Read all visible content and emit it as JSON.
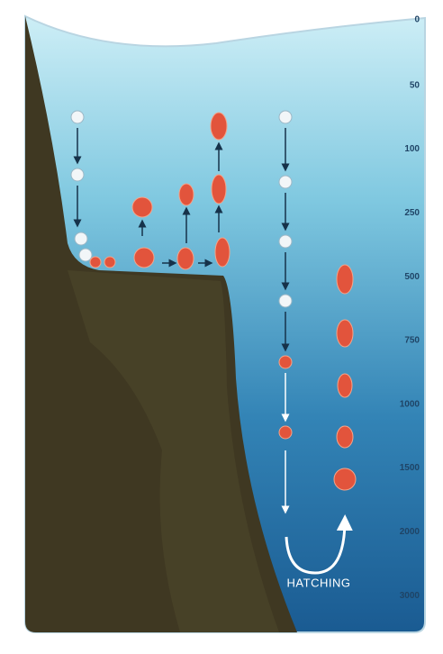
{
  "depth_scale": {
    "labels": [
      "0",
      "50",
      "100",
      "250",
      "500",
      "750",
      "1000",
      "1500",
      "2000",
      "3000"
    ]
  },
  "hatching_label": "HATCHING"
}
